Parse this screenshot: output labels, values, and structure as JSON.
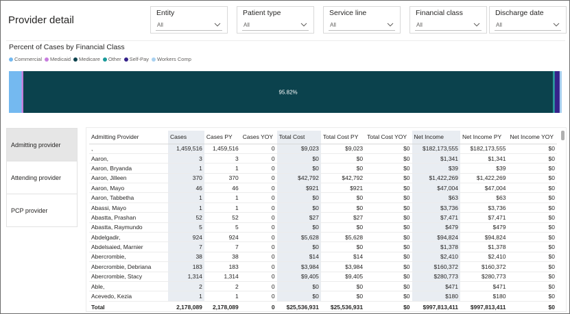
{
  "page": {
    "title": "Provider detail"
  },
  "slicers": [
    {
      "label": "Entity",
      "value": "All"
    },
    {
      "label": "Patient type",
      "value": "All"
    },
    {
      "label": "Service line",
      "value": "All"
    },
    {
      "label": "Financial class",
      "value": "All"
    },
    {
      "label": "Discharge date",
      "value": "All"
    }
  ],
  "chart": {
    "title": "Percent of Cases by Financial Class",
    "legend": [
      {
        "name": "Commercial",
        "color": "#74b9f0"
      },
      {
        "name": "Medicaid",
        "color": "#c77dde"
      },
      {
        "name": "Medicare",
        "color": "#0b424d"
      },
      {
        "name": "Other",
        "color": "#1a9a9a"
      },
      {
        "name": "Self-Pay",
        "color": "#35228a"
      },
      {
        "name": "Workers Comp",
        "color": "#a9d1f0"
      }
    ],
    "data_label": "95.82%"
  },
  "chart_data": {
    "type": "bar",
    "title": "Percent of Cases by Financial Class",
    "orientation": "horizontal-stacked-100",
    "series": [
      {
        "name": "Commercial",
        "value": 2.3
      },
      {
        "name": "Medicaid",
        "value": 0.3
      },
      {
        "name": "Medicare",
        "value": 95.82
      },
      {
        "name": "Other",
        "value": 0.3
      },
      {
        "name": "Self-Pay",
        "value": 0.9
      },
      {
        "name": "Workers Comp",
        "value": 0.38
      }
    ],
    "data_labels": [
      "95.82%"
    ],
    "xlim": [
      0,
      100
    ]
  },
  "nav": [
    {
      "label": "Admitting provider",
      "active": true
    },
    {
      "label": "Attending provider",
      "active": false
    },
    {
      "label": "PCP provider",
      "active": false
    }
  ],
  "table": {
    "columns": [
      "Admitting Provider",
      "Cases",
      "Cases PY",
      "Cases YOY",
      "Total Cost",
      "Total Cost PY",
      "Total Cost YOY",
      "Net Income",
      "Net Income PY",
      "Net Income YOY"
    ],
    "rows": [
      [
        ",",
        "1,459,516",
        "1,459,516",
        "0",
        "$9,023",
        "$9,023",
        "$0",
        "$182,173,555",
        "$182,173,555",
        "$0"
      ],
      [
        "Aaron,",
        "3",
        "3",
        "0",
        "$0",
        "$0",
        "$0",
        "$1,341",
        "$1,341",
        "$0"
      ],
      [
        "Aaron, Bryanda",
        "1",
        "1",
        "0",
        "$0",
        "$0",
        "$0",
        "$39",
        "$39",
        "$0"
      ],
      [
        "Aaron, Jilleen",
        "370",
        "370",
        "0",
        "$42,792",
        "$42,792",
        "$0",
        "$1,422,269",
        "$1,422,269",
        "$0"
      ],
      [
        "Aaron, Mayo",
        "46",
        "46",
        "0",
        "$921",
        "$921",
        "$0",
        "$47,004",
        "$47,004",
        "$0"
      ],
      [
        "Aaron, Tabbetha",
        "1",
        "1",
        "0",
        "$0",
        "$0",
        "$0",
        "$63",
        "$63",
        "$0"
      ],
      [
        "Abassi, Mayo",
        "1",
        "1",
        "0",
        "$0",
        "$0",
        "$0",
        "$3,736",
        "$3,736",
        "$0"
      ],
      [
        "Abastta, Prashan",
        "52",
        "52",
        "0",
        "$27",
        "$27",
        "$0",
        "$7,471",
        "$7,471",
        "$0"
      ],
      [
        "Abastta, Raymundo",
        "5",
        "5",
        "0",
        "$0",
        "$0",
        "$0",
        "$479",
        "$479",
        "$0"
      ],
      [
        "Abdelgadir,",
        "924",
        "924",
        "0",
        "$5,628",
        "$5,628",
        "$0",
        "$94,824",
        "$94,824",
        "$0"
      ],
      [
        "Abdelsaied, Marnier",
        "7",
        "7",
        "0",
        "$0",
        "$0",
        "$0",
        "$1,378",
        "$1,378",
        "$0"
      ],
      [
        "Abercrombie,",
        "38",
        "38",
        "0",
        "$14",
        "$14",
        "$0",
        "$2,410",
        "$2,410",
        "$0"
      ],
      [
        "Abercrombie, Debriana",
        "183",
        "183",
        "0",
        "$3,984",
        "$3,984",
        "$0",
        "$160,372",
        "$160,372",
        "$0"
      ],
      [
        "Abercrombie, Stacy",
        "1,314",
        "1,314",
        "0",
        "$9,405",
        "$9,405",
        "$0",
        "$280,773",
        "$280,773",
        "$0"
      ],
      [
        "Able,",
        "2",
        "2",
        "0",
        "$0",
        "$0",
        "$0",
        "$471",
        "$471",
        "$0"
      ],
      [
        "Acevedo, Kezia",
        "1",
        "1",
        "0",
        "$0",
        "$0",
        "$0",
        "$180",
        "$180",
        "$0"
      ]
    ],
    "total": [
      "Total",
      "2,178,089",
      "2,178,089",
      "0",
      "$25,536,931",
      "$25,536,931",
      "$0",
      "$997,813,411",
      "$997,813,411",
      "$0"
    ]
  }
}
